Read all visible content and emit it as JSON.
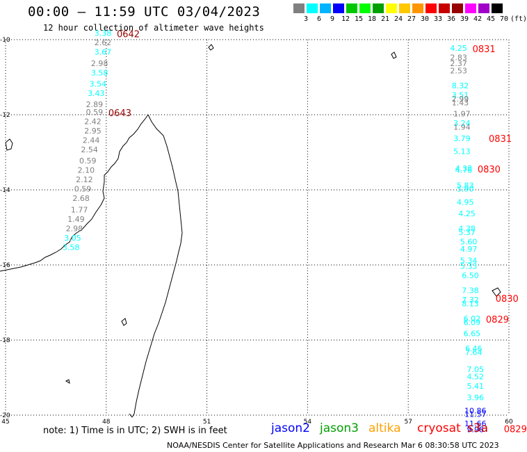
{
  "title": "00:00 – 11:59 UTC 03/04/2023",
  "subtitle": "12 hour collection of altimeter wave heights",
  "legend": {
    "labels": [
      "3",
      "6",
      "9",
      "12",
      "15",
      "18",
      "21",
      "24",
      "27",
      "30",
      "33",
      "36",
      "39",
      "42",
      "45",
      "70",
      "(ft)"
    ],
    "colors": [
      "#808080",
      "#00ffff",
      "#00b4ff",
      "#0000ff",
      "#00c800",
      "#00ff00",
      "#00a000",
      "#ffff00",
      "#ffc800",
      "#ff9600",
      "#ff0000",
      "#c80000",
      "#960000",
      "#ff00ff",
      "#a000c8",
      "#000000"
    ]
  },
  "axes": {
    "lon_labels": [
      "45",
      "48",
      "51",
      "54",
      "57",
      "60"
    ],
    "lat_labels": [
      "-10",
      "-12",
      "-14",
      "-16",
      "-18",
      "-20"
    ]
  },
  "tracks": [
    {
      "time": "0642",
      "time_color": "#960000",
      "points": [
        {
          "lon": 47.9,
          "lat": -9.9,
          "v": "3.38",
          "c": "#00ffff"
        },
        {
          "lon": 47.9,
          "lat": -10.15,
          "v": "2.62",
          "c": "#808080"
        },
        {
          "lon": 47.9,
          "lat": -10.4,
          "v": "3.67",
          "c": "#00ffff"
        },
        {
          "lon": 47.8,
          "lat": -10.7,
          "v": "2.98",
          "c": "#808080"
        },
        {
          "lon": 47.8,
          "lat": -10.95,
          "v": "3.58",
          "c": "#00ffff"
        },
        {
          "lon": 47.75,
          "lat": -11.25,
          "v": "3.54",
          "c": "#00ffff"
        },
        {
          "lon": 47.7,
          "lat": -11.5,
          "v": "3.43",
          "c": "#00ffff"
        },
        {
          "lon": 47.65,
          "lat": -11.8,
          "v": "2.89",
          "c": "#808080"
        }
      ]
    },
    {
      "time": "0643",
      "time_color": "#960000",
      "points": [
        {
          "lon": 47.65,
          "lat": -12.0,
          "v": "0.59",
          "c": "#808080"
        },
        {
          "lon": 47.6,
          "lat": -12.25,
          "v": "2.42",
          "c": "#808080"
        },
        {
          "lon": 47.6,
          "lat": -12.5,
          "v": "2.95",
          "c": "#808080"
        },
        {
          "lon": 47.55,
          "lat": -12.75,
          "v": "2.44",
          "c": "#808080"
        },
        {
          "lon": 47.5,
          "lat": -13.0,
          "v": "2.54",
          "c": "#808080"
        },
        {
          "lon": 47.45,
          "lat": -13.3,
          "v": "0.59",
          "c": "#808080"
        },
        {
          "lon": 47.4,
          "lat": -13.55,
          "v": "2.10",
          "c": "#808080"
        },
        {
          "lon": 47.35,
          "lat": -13.8,
          "v": "2.12",
          "c": "#808080"
        },
        {
          "lon": 47.3,
          "lat": -14.05,
          "v": "0.59",
          "c": "#808080"
        },
        {
          "lon": 47.25,
          "lat": -14.3,
          "v": "2.68",
          "c": "#808080"
        },
        {
          "lon": 47.2,
          "lat": -14.6,
          "v": "1.77",
          "c": "#808080"
        },
        {
          "lon": 47.1,
          "lat": -14.85,
          "v": "1.49",
          "c": "#808080"
        },
        {
          "lon": 47.05,
          "lat": -15.1,
          "v": "2.98",
          "c": "#808080"
        },
        {
          "lon": 47.0,
          "lat": -15.35,
          "v": "3.05",
          "c": "#00ffff"
        },
        {
          "lon": 46.95,
          "lat": -15.6,
          "v": "3.58",
          "c": "#00ffff"
        }
      ]
    },
    {
      "time": "0831",
      "time_color": "#ff0000",
      "points": [
        {
          "lon": 58.5,
          "lat": -10.3,
          "v": "4.25",
          "c": "#00ffff"
        },
        {
          "lon": 58.5,
          "lat": -10.55,
          "v": "2.83",
          "c": "#808080"
        },
        {
          "lon": 58.5,
          "lat": -10.7,
          "v": "2.37",
          "c": "#808080"
        },
        {
          "lon": 58.5,
          "lat": -10.9,
          "v": "2.53",
          "c": "#808080"
        },
        {
          "lon": 58.55,
          "lat": -11.3,
          "v": "8.32",
          "c": "#00ffff"
        },
        {
          "lon": 58.55,
          "lat": -11.55,
          "v": "3.51",
          "c": "#00ffff"
        },
        {
          "lon": 58.55,
          "lat": -11.65,
          "v": "2.99",
          "c": "#808080"
        },
        {
          "lon": 58.55,
          "lat": -11.75,
          "v": "1.43",
          "c": "#808080"
        },
        {
          "lon": 58.6,
          "lat": -12.05,
          "v": "1.97",
          "c": "#808080"
        },
        {
          "lon": 58.6,
          "lat": -12.3,
          "v": "3.24",
          "c": "#00ffff"
        },
        {
          "lon": 58.6,
          "lat": -12.4,
          "v": "1.94",
          "c": "#808080"
        },
        {
          "lon": 58.6,
          "lat": -12.7,
          "v": "3.79",
          "c": "#00ffff"
        },
        {
          "lon": 58.6,
          "lat": -13.05,
          "v": "5.13",
          "c": "#00ffff"
        }
      ],
      "extra_times": [
        {
          "lon": 59.4,
          "lat": -12.72,
          "t": "0831"
        }
      ]
    },
    {
      "time": "0830",
      "time_color": "#ff0000",
      "points": [
        {
          "lon": 58.65,
          "lat": -13.5,
          "v": "4.38",
          "c": "#00ffff"
        },
        {
          "lon": 58.65,
          "lat": -13.55,
          "v": "4.76",
          "c": "#00ffff"
        },
        {
          "lon": 58.7,
          "lat": -13.95,
          "v": "5.83",
          "c": "#00ffff"
        },
        {
          "lon": 58.7,
          "lat": -14.05,
          "v": "5.90",
          "c": "#00ffff"
        },
        {
          "lon": 58.7,
          "lat": -14.4,
          "v": "4.95",
          "c": "#00ffff"
        },
        {
          "lon": 58.75,
          "lat": -14.7,
          "v": "4.25",
          "c": "#00ffff"
        },
        {
          "lon": 58.75,
          "lat": -15.1,
          "v": "4.38",
          "c": "#00ffff"
        },
        {
          "lon": 58.75,
          "lat": -15.2,
          "v": "5.37",
          "c": "#00ffff"
        },
        {
          "lon": 58.8,
          "lat": -15.45,
          "v": "5.60",
          "c": "#00ffff"
        },
        {
          "lon": 58.8,
          "lat": -15.65,
          "v": "4.97",
          "c": "#00ffff"
        },
        {
          "lon": 58.8,
          "lat": -15.95,
          "v": "5.34",
          "c": "#00ffff"
        },
        {
          "lon": 58.8,
          "lat": -16.1,
          "v": "5.33",
          "c": "#00ffff"
        },
        {
          "lon": 58.85,
          "lat": -16.35,
          "v": "6.50",
          "c": "#00ffff"
        },
        {
          "lon": 58.85,
          "lat": -16.75,
          "v": "7.38",
          "c": "#00ffff"
        },
        {
          "lon": 58.85,
          "lat": -17.0,
          "v": "7.32",
          "c": "#00ffff"
        },
        {
          "lon": 58.85,
          "lat": -17.1,
          "v": "8.13",
          "c": "#00ffff"
        }
      ],
      "extra_times": [
        {
          "lon": 59.6,
          "lat": -16.98,
          "t": "0830"
        }
      ]
    },
    {
      "time": "0829",
      "time_color": "#ff0000",
      "points": [
        {
          "lon": 58.9,
          "lat": -17.5,
          "v": "6.02",
          "c": "#00ffff"
        },
        {
          "lon": 58.9,
          "lat": -17.6,
          "v": "6.09",
          "c": "#00ffff"
        },
        {
          "lon": 58.9,
          "lat": -17.9,
          "v": "6.65",
          "c": "#00ffff"
        },
        {
          "lon": 58.95,
          "lat": -18.3,
          "v": "6.46",
          "c": "#00ffff"
        },
        {
          "lon": 58.95,
          "lat": -18.4,
          "v": "7.64",
          "c": "#00ffff"
        },
        {
          "lon": 59.0,
          "lat": -18.85,
          "v": "7.05",
          "c": "#00ffff"
        },
        {
          "lon": 59.0,
          "lat": -19.05,
          "v": "4.52",
          "c": "#00ffff"
        },
        {
          "lon": 59.0,
          "lat": -19.3,
          "v": "5.41",
          "c": "#00ffff"
        },
        {
          "lon": 59.0,
          "lat": -19.6,
          "v": "3.96",
          "c": "#00ffff"
        },
        {
          "lon": 59.0,
          "lat": -19.95,
          "v": "10.86",
          "c": "#0000ff"
        },
        {
          "lon": 59.0,
          "lat": -20.05,
          "v": "11.57",
          "c": "#0000ff"
        },
        {
          "lon": 59.0,
          "lat": -20.3,
          "v": "11.66",
          "c": "#0000ff"
        },
        {
          "lon": 59.0,
          "lat": -20.45,
          "v": "9.98",
          "c": "#0000ff"
        }
      ],
      "extra_times": [
        {
          "lon": 59.85,
          "lat": -20.45,
          "t": "0829"
        }
      ]
    }
  ],
  "note": "note: 1) Time is in UTC; 2) SWH is in feet",
  "satellites": [
    {
      "name": "jason2",
      "color": "#0000ff"
    },
    {
      "name": "jason3",
      "color": "#00a000"
    },
    {
      "name": "altika",
      "color": "#ffa000"
    },
    {
      "name": "cryosat",
      "color": "#ff0000"
    },
    {
      "name": "s3a",
      "color": "#c80000"
    }
  ],
  "credit": "NOAA/NESDIS Center for Satellite Applications and Research   Mar  6 08:30:58 UTC 2023"
}
